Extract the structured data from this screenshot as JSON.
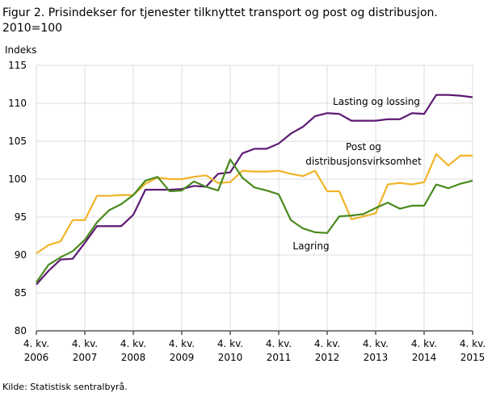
{
  "chart_data": {
    "type": "line",
    "title": "Figur 2. Prisindekser for tjenester tilknyttet transport og post og distribusjon.",
    "subtitle": "2010=100",
    "y_label": "Indeks",
    "source": "Kilde: Statistisk sentralbyrå.",
    "categories": [
      [
        "4. kv.",
        "2006"
      ],
      null,
      null,
      null,
      [
        "4. kv.",
        "2007"
      ],
      null,
      null,
      null,
      [
        "4. kv.",
        "2008"
      ],
      null,
      null,
      null,
      [
        "4. kv.",
        "2009"
      ],
      null,
      null,
      null,
      [
        "4. kv.",
        "2010"
      ],
      null,
      null,
      null,
      [
        "4. kv.",
        "2011"
      ],
      null,
      null,
      null,
      [
        "4. kv.",
        "2012"
      ],
      null,
      null,
      null,
      [
        "4. kv.",
        "2013"
      ],
      null,
      null,
      null,
      [
        "4. kv.",
        "2014"
      ],
      null,
      null,
      null,
      [
        "4. kv.",
        "2015"
      ]
    ],
    "ylim": [
      80,
      115
    ],
    "yticks": [
      80,
      85,
      90,
      95,
      100,
      105,
      110,
      115
    ],
    "grid": true,
    "series": [
      {
        "name": "Lasting og lossing",
        "color": "#5e1a72",
        "values": [
          86.1,
          87.9,
          89.4,
          89.5,
          91.6,
          93.8,
          93.8,
          93.8,
          95.3,
          98.6,
          98.6,
          98.6,
          98.7,
          99.1,
          99.0,
          100.7,
          100.9,
          103.4,
          104.0,
          104.0,
          104.7,
          106.0,
          106.9,
          108.3,
          108.7,
          108.6,
          107.7,
          107.7,
          107.7,
          107.9,
          107.9,
          108.7,
          108.6,
          111.1,
          111.1,
          111.0,
          110.8
        ]
      },
      {
        "name": "Post og\ndistribusjonsvirksomhet",
        "color": "#f0b429",
        "values": [
          90.2,
          91.3,
          91.8,
          94.6,
          94.6,
          97.8,
          97.8,
          97.9,
          97.9,
          99.4,
          100.2,
          100.0,
          100.0,
          100.3,
          100.5,
          99.5,
          99.6,
          101.1,
          101.0,
          101.0,
          101.1,
          100.7,
          100.4,
          101.1,
          98.4,
          98.4,
          94.7,
          95.1,
          95.5,
          99.3,
          99.5,
          99.3,
          99.6,
          103.3,
          101.8,
          103.1,
          103.1
        ]
      },
      {
        "name": "Lagring",
        "color": "#4a8a1e",
        "values": [
          86.4,
          88.7,
          89.7,
          90.5,
          92.0,
          94.3,
          95.9,
          96.7,
          97.9,
          99.8,
          100.3,
          98.4,
          98.5,
          99.7,
          99.0,
          98.5,
          102.6,
          100.2,
          98.9,
          98.5,
          98.0,
          94.6,
          93.5,
          93.0,
          92.9,
          95.1,
          95.2,
          95.4,
          96.2,
          96.9,
          96.1,
          96.5,
          96.5,
          99.3,
          98.8,
          99.4,
          99.8
        ]
      }
    ]
  }
}
